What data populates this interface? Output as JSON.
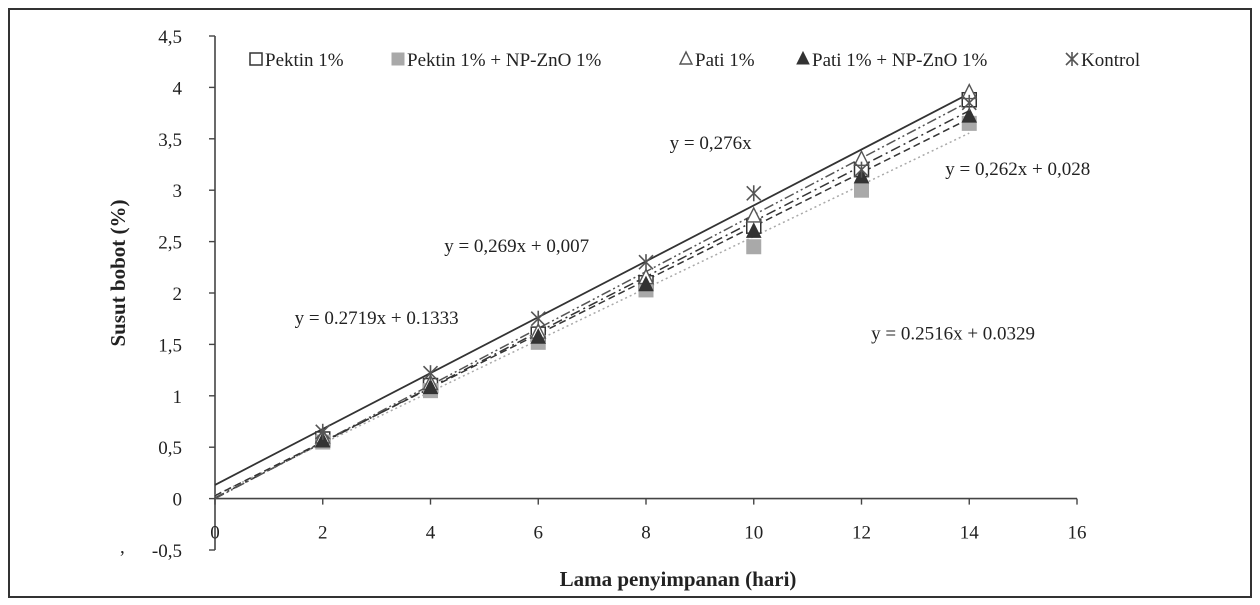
{
  "chart_data": {
    "type": "scatter",
    "xlabel": "Lama penyimpanan (hari)",
    "ylabel": "Susut bobot (%)",
    "xlim": [
      0,
      16
    ],
    "ylim": [
      -0.5,
      4.5
    ],
    "x_ticks": [
      "0",
      "2",
      "4",
      "6",
      "8",
      "10",
      "12",
      "14",
      "16"
    ],
    "y_ticks": [
      "-0,5",
      "0",
      "0,5",
      "1",
      "1,5",
      "2",
      "2,5",
      "3",
      "3,5",
      "4",
      "4,5"
    ],
    "grid": false,
    "legend_position": "top",
    "series": [
      {
        "name": "Pektin 1%",
        "marker": "square-open",
        "color": "#333333",
        "line": "dashdot",
        "x": [
          2,
          4,
          6,
          8,
          10,
          12,
          14
        ],
        "y": [
          0.58,
          1.1,
          1.6,
          2.1,
          2.65,
          3.2,
          3.88
        ],
        "fit": {
          "slope": 0.269,
          "intercept": 0.007
        }
      },
      {
        "name": "Pektin 1% + NP-ZnO 1%",
        "marker": "square-filled",
        "color": "#a9a9a9",
        "line": "dotted",
        "x": [
          2,
          4,
          6,
          8,
          10,
          12,
          14
        ],
        "y": [
          0.55,
          1.05,
          1.52,
          2.03,
          2.45,
          3.0,
          3.65
        ],
        "fit": {
          "slope": 0.2516,
          "intercept": 0.0329
        }
      },
      {
        "name": "Pati 1%",
        "marker": "triangle-open",
        "color": "#555555",
        "line": "dashdotdot",
        "x": [
          2,
          4,
          6,
          8,
          10,
          12,
          14
        ],
        "y": [
          0.6,
          1.12,
          1.62,
          2.15,
          2.75,
          3.3,
          3.95
        ],
        "fit": {
          "slope": 0.276,
          "intercept": 0
        }
      },
      {
        "name": "Pati 1% + NP-ZnO 1%",
        "marker": "triangle-filled",
        "color": "#333333",
        "line": "dashed",
        "x": [
          2,
          4,
          6,
          8,
          10,
          12,
          14
        ],
        "y": [
          0.56,
          1.08,
          1.57,
          2.08,
          2.6,
          3.13,
          3.72
        ],
        "fit": {
          "slope": 0.262,
          "intercept": 0.028
        }
      },
      {
        "name": "Kontrol",
        "marker": "star",
        "color": "#555555",
        "line": "solid",
        "x": [
          2,
          4,
          6,
          8,
          10,
          12,
          14
        ],
        "y": [
          0.65,
          1.22,
          1.75,
          2.3,
          2.97,
          3.2,
          3.85
        ],
        "fit": {
          "slope": 0.2719,
          "intercept": 0.1333
        }
      }
    ],
    "annotations": [
      {
        "text": "y = 0,276x",
        "x": 9.2,
        "y": 3.4
      },
      {
        "text": "y = 0,262x + 0,028",
        "x": 14.9,
        "y": 3.15
      },
      {
        "text": "y = 0,269x + 0,007",
        "x": 5.6,
        "y": 2.4
      },
      {
        "text": "y = 0.2719x + 0.1333",
        "x": 3.0,
        "y": 1.7
      },
      {
        "text": "y = 0.2516x + 0.0329",
        "x": 13.7,
        "y": 1.55
      }
    ],
    "stray_mark": ","
  }
}
